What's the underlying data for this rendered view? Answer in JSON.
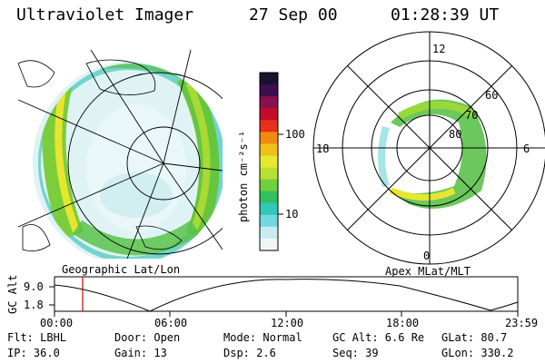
{
  "header": {
    "instrument": "Ultraviolet Imager",
    "date": "27 Sep 00",
    "time": "01:28:39 UT"
  },
  "geo_panel": {
    "label": "Geographic Lat/Lon"
  },
  "mlt_panel": {
    "label": "Apex MLat/MLT",
    "mlt_labels": {
      "top": "12",
      "left": "18",
      "right": "6",
      "bottom": "0"
    },
    "lat_labels": [
      "60",
      "70",
      "80"
    ]
  },
  "colorbar": {
    "unit_label": "photon cm⁻²s⁻¹",
    "ticks": [
      "100",
      "10"
    ],
    "colors": [
      "#1a1030",
      "#3a1050",
      "#8a0f4f",
      "#c40a2a",
      "#e8301a",
      "#f08a10",
      "#f0c018",
      "#e8e830",
      "#b8e030",
      "#70d040",
      "#30c060",
      "#30c8b8",
      "#70d8e0",
      "#c8ecf0",
      "#eef6f8"
    ]
  },
  "timeline": {
    "axis_label": "GC Alt",
    "y_ticks": [
      "9.0",
      "1.8"
    ],
    "x_ticks": [
      "00:00",
      "06:00",
      "12:00",
      "18:00",
      "23:59"
    ],
    "current_time_marker": "01:28"
  },
  "info": {
    "filter": "Flt: LBHL",
    "door": "Door: Open",
    "mode": "Mode: Normal",
    "gc_alt": "GC Alt: 6.6 Re",
    "glat": "GLat:  80.7",
    "ip": "IP: 36.0",
    "gain": "Gain: 13",
    "dsp": "Dsp:    2.6",
    "seq": "Seq: 39",
    "glon": "GLon: 330.2"
  }
}
